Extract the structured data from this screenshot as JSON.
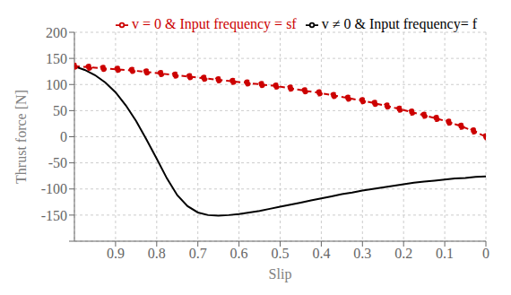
{
  "chart_data": {
    "type": "line",
    "xlabel": "Slip",
    "ylabel": "Thrust force [N]",
    "xlim": [
      1.0,
      0.0
    ],
    "ylim": [
      -200,
      200
    ],
    "xticks": [
      0.9,
      0.8,
      0.7,
      0.6,
      0.5,
      0.4,
      0.3,
      0.2,
      0.1,
      0
    ],
    "yticks": [
      {
        "value": -200,
        "label": ""
      },
      -150,
      -100,
      -50,
      0,
      50,
      100,
      150,
      200
    ],
    "grid": true,
    "legend": "upper right",
    "series": [
      {
        "name": "v = 0 & Input frequency = sf",
        "color": "#cc0000",
        "line_style": "dashed",
        "marker": "circle",
        "x": [
          1.0,
          0.965,
          0.93,
          0.895,
          0.86,
          0.825,
          0.79,
          0.755,
          0.72,
          0.685,
          0.65,
          0.615,
          0.58,
          0.545,
          0.51,
          0.475,
          0.44,
          0.405,
          0.37,
          0.335,
          0.3,
          0.27,
          0.24,
          0.21,
          0.18,
          0.15,
          0.12,
          0.09,
          0.06,
          0.03,
          0.0
        ],
        "values": [
          135,
          133,
          131,
          129,
          127,
          124,
          121,
          118,
          115,
          112,
          109,
          106,
          103,
          100,
          97,
          93,
          88,
          84,
          79,
          74,
          69,
          64,
          59,
          53,
          47,
          41,
          35,
          28,
          20,
          11,
          0
        ]
      },
      {
        "name": "v ≠ 0 & Input frequency=  f",
        "color": "#000000",
        "line_style": "solid",
        "marker": "none",
        "x": [
          1.0,
          0.975,
          0.95,
          0.925,
          0.9,
          0.875,
          0.85,
          0.825,
          0.8,
          0.775,
          0.75,
          0.725,
          0.7,
          0.675,
          0.65,
          0.625,
          0.6,
          0.575,
          0.55,
          0.525,
          0.5,
          0.475,
          0.45,
          0.425,
          0.4,
          0.375,
          0.35,
          0.325,
          0.3,
          0.275,
          0.25,
          0.225,
          0.2,
          0.175,
          0.15,
          0.125,
          0.1,
          0.075,
          0.05,
          0.025,
          0.0
        ],
        "values": [
          135,
          128,
          118,
          104,
          85,
          60,
          30,
          -5,
          -42,
          -80,
          -112,
          -133,
          -145,
          -150,
          -151,
          -150,
          -148,
          -145,
          -142,
          -138,
          -134,
          -130,
          -126,
          -122,
          -118,
          -114,
          -110,
          -107,
          -103,
          -100,
          -97,
          -94,
          -91,
          -88,
          -86,
          -84,
          -82,
          -80,
          -79,
          -77,
          -76
        ]
      }
    ]
  }
}
